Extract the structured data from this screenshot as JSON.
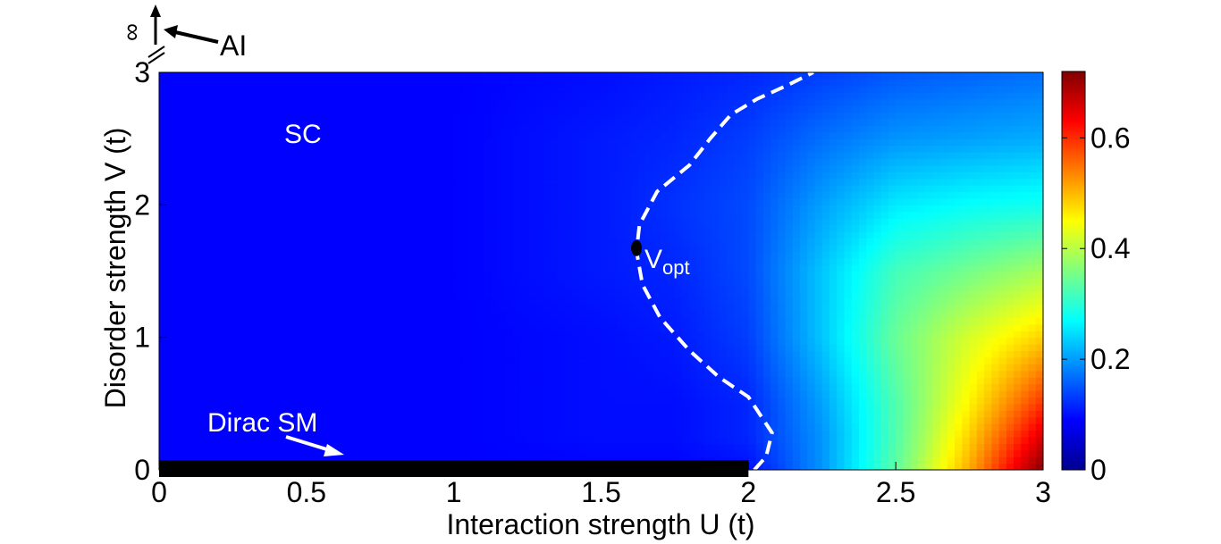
{
  "chart_data": {
    "type": "heatmap",
    "title": "",
    "xlabel": "Interaction strength U (t)",
    "ylabel": "Disorder strength V (t)",
    "xlim": [
      0,
      3
    ],
    "ylim": [
      0,
      3
    ],
    "x_ticks": [
      "0",
      "0.5",
      "1",
      "1.5",
      "2",
      "2.5",
      "3"
    ],
    "y_ticks": [
      "0",
      "1",
      "2",
      "3"
    ],
    "colorbar": {
      "range": [
        0,
        0.72
      ],
      "ticks": [
        "0",
        "0.2",
        "0.4",
        "0.6"
      ],
      "colormap": "jet"
    },
    "grid": false,
    "u_grid": [
      0,
      0.5,
      1.0,
      1.5,
      1.75,
      2.0,
      2.25,
      2.5,
      2.75,
      3.0
    ],
    "v_grid": [
      0,
      0.25,
      0.5,
      1.0,
      1.5,
      2.0,
      2.5,
      3.0
    ],
    "values": [
      [
        0.0,
        0.0,
        0.0,
        0.0,
        0.0,
        0.01,
        0.12,
        0.28,
        0.48,
        0.72
      ],
      [
        0.0,
        0.0,
        0.0,
        0.01,
        0.01,
        0.03,
        0.12,
        0.27,
        0.45,
        0.65
      ],
      [
        0.0,
        0.0,
        0.0,
        0.01,
        0.01,
        0.03,
        0.13,
        0.27,
        0.42,
        0.58
      ],
      [
        0.0,
        0.0,
        0.0,
        0.01,
        0.02,
        0.05,
        0.16,
        0.29,
        0.38,
        0.45
      ],
      [
        0.0,
        0.0,
        0.0,
        0.02,
        0.03,
        0.06,
        0.16,
        0.26,
        0.3,
        0.34
      ],
      [
        0.0,
        0.0,
        0.0,
        0.02,
        0.04,
        0.06,
        0.13,
        0.19,
        0.21,
        0.22
      ],
      [
        0.0,
        0.0,
        0.0,
        0.02,
        0.03,
        0.05,
        0.09,
        0.12,
        0.13,
        0.14
      ],
      [
        0.0,
        0.0,
        0.0,
        0.01,
        0.02,
        0.03,
        0.05,
        0.07,
        0.08,
        0.09
      ]
    ],
    "phase_boundary": [
      [
        2.02,
        0.0
      ],
      [
        2.06,
        0.1
      ],
      [
        2.08,
        0.28
      ],
      [
        2.0,
        0.55
      ],
      [
        1.9,
        0.7
      ],
      [
        1.8,
        0.9
      ],
      [
        1.7,
        1.15
      ],
      [
        1.64,
        1.4
      ],
      [
        1.62,
        1.65
      ],
      [
        1.63,
        1.85
      ],
      [
        1.69,
        2.1
      ],
      [
        1.8,
        2.3
      ],
      [
        1.87,
        2.5
      ],
      [
        1.94,
        2.68
      ],
      [
        2.03,
        2.8
      ],
      [
        2.13,
        2.9
      ],
      [
        2.22,
        3.0
      ]
    ],
    "dirac_sm_segment": {
      "u_start": 0.0,
      "u_end": 2.0,
      "v": 0.0
    },
    "optimal_point": {
      "u": 1.62,
      "v": 1.62
    },
    "annotations": {
      "sc_label": "SC",
      "dirac_label": "Dirac SM",
      "vopt_main": "V",
      "vopt_sub": "opt",
      "infinity_label": "∞",
      "ai_label": "AI"
    }
  }
}
